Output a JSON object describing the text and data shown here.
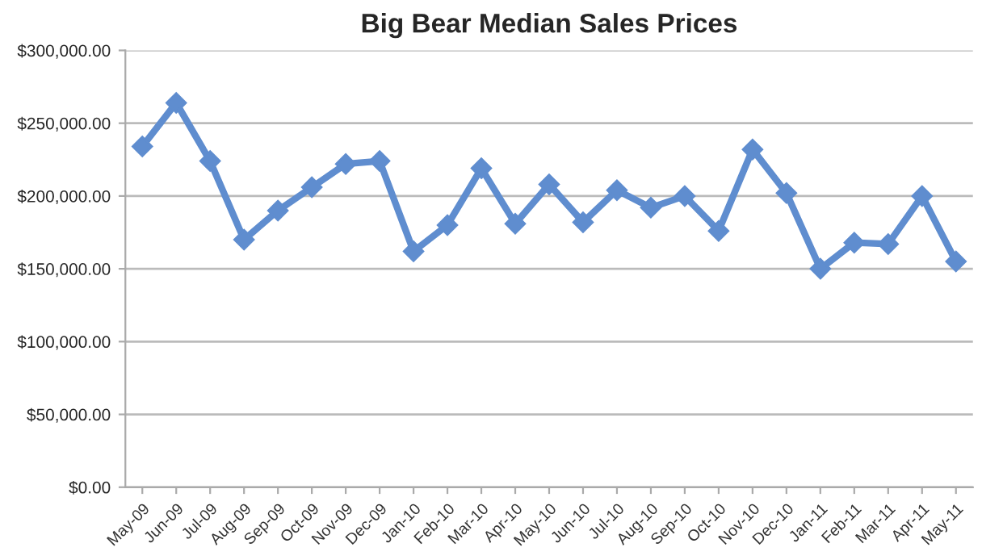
{
  "chart_data": {
    "type": "line",
    "title": "Big Bear Median Sales Prices",
    "categories": [
      "May-09",
      "Jun-09",
      "Jul-09",
      "Aug-09",
      "Sep-09",
      "Oct-09",
      "Nov-09",
      "Dec-09",
      "Jan-10",
      "Feb-10",
      "Mar-10",
      "Apr-10",
      "May-10",
      "Jun-10",
      "Jul-10",
      "Aug-10",
      "Sep-10",
      "Oct-10",
      "Nov-10",
      "Dec-10",
      "Jan-11",
      "Feb-11",
      "Mar-11",
      "Apr-11",
      "May-11"
    ],
    "series": [
      {
        "color": "#5f8dcf",
        "values": [
          234000,
          264000,
          224000,
          170000,
          190000,
          206000,
          222000,
          224000,
          162000,
          180000,
          219000,
          181000,
          208000,
          182000,
          204000,
          192000,
          200000,
          176000,
          232000,
          202000,
          150000,
          168000,
          167000,
          200000,
          155000
        ]
      }
    ],
    "ylim": [
      0,
      300000
    ],
    "yticks": [
      {
        "value": 0,
        "label": "$0.00"
      },
      {
        "value": 50000,
        "label": "$50,000.00"
      },
      {
        "value": 100000,
        "label": "$100,000.00"
      },
      {
        "value": 150000,
        "label": "$150,000.00"
      },
      {
        "value": 200000,
        "label": "$200,000.00"
      },
      {
        "value": 250000,
        "label": "$250,000.00"
      },
      {
        "value": 300000,
        "label": "$300,000.00"
      }
    ],
    "grid": "y",
    "marker": "diamond",
    "line_style": "solid"
  }
}
